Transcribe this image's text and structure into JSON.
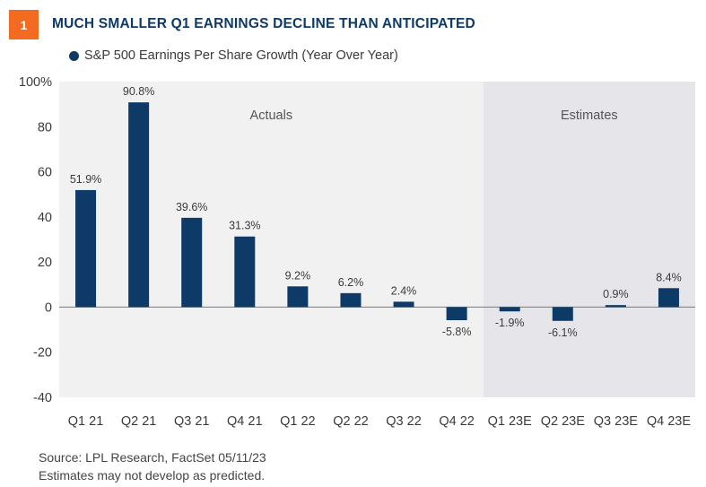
{
  "figure": {
    "number": "1",
    "title": "MUCH SMALLER Q1 EARNINGS DECLINE THAN ANTICIPATED"
  },
  "chart_data": {
    "type": "bar",
    "categories": [
      "Q1 21",
      "Q2 21",
      "Q3 21",
      "Q4 21",
      "Q1 22",
      "Q2 22",
      "Q3 22",
      "Q4 22",
      "Q1 23E",
      "Q2 23E",
      "Q3 23E",
      "Q4 23E"
    ],
    "series": [
      {
        "name": "S&P 500 Earnings Per Share Growth (Year Over Year)",
        "values": [
          51.9,
          90.8,
          39.6,
          31.3,
          9.2,
          6.2,
          2.4,
          -5.8,
          -1.9,
          -6.1,
          0.9,
          8.4
        ],
        "labels": [
          "51.9%",
          "90.8%",
          "39.6%",
          "31.3%",
          "9.2%",
          "6.2%",
          "2.4%",
          "-5.8%",
          "-1.9%",
          "-6.1%",
          "0.9%",
          "8.4%"
        ]
      }
    ],
    "ylim": [
      -40,
      100
    ],
    "yticks": [
      -40,
      -20,
      0,
      20,
      40,
      60,
      80,
      100
    ],
    "ytick_labels": [
      "-40",
      "-20",
      "0",
      "20",
      "40",
      "60",
      "80",
      "100%"
    ],
    "regions": [
      {
        "label": "Actuals",
        "from": "Q1 21",
        "to": "Q4 22"
      },
      {
        "label": "Estimates",
        "from": "Q1 23E",
        "to": "Q4 23E"
      }
    ],
    "colors": {
      "bar": "#0d3a66",
      "actuals_bg": "#f1f1f2",
      "estimates_bg": "#e6e6ea",
      "accent": "#f26b21"
    },
    "legend_position": "top-left"
  },
  "footer": {
    "source": "Source: LPL Research, FactSet  05/11/23",
    "note": "Estimates may not develop as predicted."
  }
}
